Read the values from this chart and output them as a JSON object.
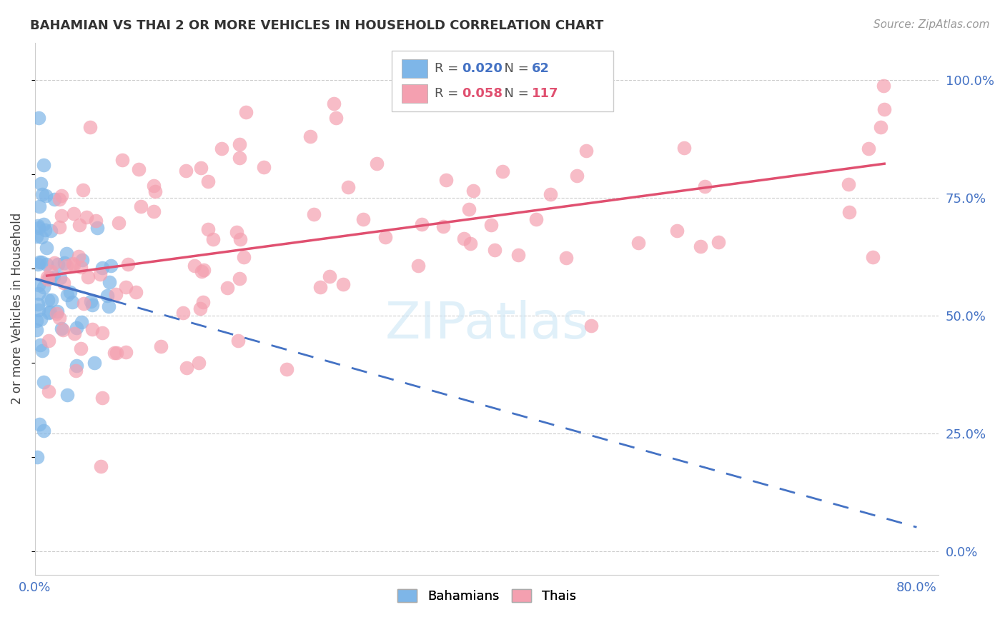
{
  "title": "BAHAMIAN VS THAI 2 OR MORE VEHICLES IN HOUSEHOLD CORRELATION CHART",
  "source": "Source: ZipAtlas.com",
  "ylabel": "2 or more Vehicles in Household",
  "xlim": [
    0.0,
    0.82
  ],
  "ylim": [
    -0.05,
    1.08
  ],
  "xtick_positions": [
    0.0,
    0.1,
    0.2,
    0.3,
    0.4,
    0.5,
    0.6,
    0.7,
    0.8
  ],
  "xticklabels": [
    "0.0%",
    "",
    "",
    "",
    "",
    "",
    "",
    "",
    "80.0%"
  ],
  "yticks_right": [
    0.0,
    0.25,
    0.5,
    0.75,
    1.0
  ],
  "ytick_labels_right": [
    "0.0%",
    "25.0%",
    "50.0%",
    "75.0%",
    "100.0%"
  ],
  "bahamian_R": 0.02,
  "bahamian_N": 62,
  "thai_R": 0.058,
  "thai_N": 117,
  "bahamian_color": "#7EB6E8",
  "thai_color": "#F4A0B0",
  "bahamian_line_color": "#4472C4",
  "thai_line_color": "#E05070",
  "grid_color": "#cccccc",
  "watermark": "ZIPatlas"
}
